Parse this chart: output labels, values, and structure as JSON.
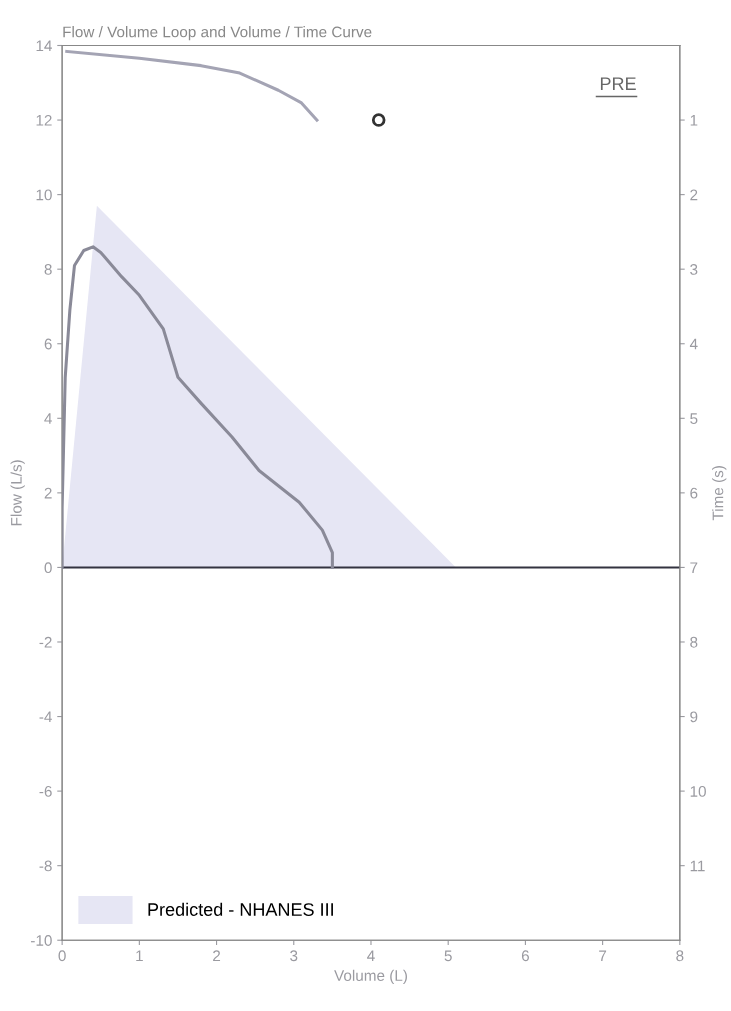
{
  "chart_data": {
    "type": "line",
    "title": "Flow / Volume Loop and Volume / Time Curve",
    "xlabel": "Volume (L)",
    "ylabel": "Flow (L/s)",
    "y2label": "Time (s)",
    "xlim": [
      0,
      8
    ],
    "xticks": [
      0,
      1,
      2,
      3,
      4,
      5,
      6,
      7,
      8
    ],
    "ylim": [
      -10,
      14
    ],
    "yticks": [
      -10,
      -8,
      -6,
      -4,
      -2,
      0,
      2,
      4,
      6,
      8,
      10,
      12,
      14
    ],
    "y2lim": [
      12,
      0
    ],
    "y2ticks": [
      1,
      2,
      3,
      4,
      5,
      6,
      7,
      8,
      9,
      10,
      11
    ],
    "grid": false,
    "legend": "bottom left",
    "marker": "none",
    "line_style": "solid",
    "series": [
      {
        "name": "Predicted - NHANES III",
        "type": "area",
        "color": "#e6e6f4",
        "x": [
          0,
          0.45,
          5.1
        ],
        "values": [
          0,
          9.7,
          0
        ]
      },
      {
        "color": "#8a8a98",
        "x": [
          0,
          0,
          0.04,
          0.1,
          0.16,
          0.28,
          0.4,
          0.5,
          0.77,
          1.0,
          1.31,
          1.5,
          1.8,
          2.2,
          2.55,
          3.07,
          3.37,
          3.5,
          3.5
        ],
        "values": [
          0,
          1.6,
          5.1,
          6.9,
          8.1,
          8.5,
          8.6,
          8.45,
          7.8,
          7.3,
          6.4,
          5.1,
          4.4,
          3.5,
          2.6,
          1.75,
          1.0,
          0.4,
          0
        ]
      },
      {
        "axis": "y2",
        "color": "#a4a4b4",
        "x": [
          0.06,
          1.0,
          1.8,
          2.3,
          2.8,
          3.1,
          3.3
        ],
        "values": [
          0.08,
          0.17,
          0.27,
          0.37,
          0.6,
          0.77,
          1.0
        ]
      },
      {
        "type": "scatter",
        "axis": "y2",
        "marker": "circle",
        "color": "#333333",
        "x": [
          4.1
        ],
        "values": [
          1.0
        ]
      }
    ],
    "ref_lines": [
      {
        "axis": "y",
        "value": 0,
        "color": "#333340"
      }
    ],
    "annotations": [
      "PRE"
    ]
  }
}
